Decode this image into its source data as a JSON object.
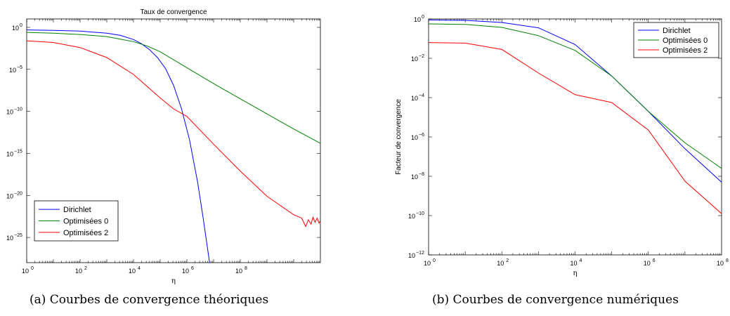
{
  "chart_data": [
    {
      "id": "a",
      "type": "line",
      "title": "Taux de convergence",
      "xlabel": "η",
      "ylabel": "",
      "x_scale": "log",
      "y_scale": "log",
      "xlim_exp": [
        0,
        11
      ],
      "ylim_exp": [
        -28,
        1
      ],
      "xtick_exp": [
        0,
        2,
        4,
        6,
        8
      ],
      "ytick_exp": [
        0,
        -5,
        -10,
        -15,
        -20,
        -25
      ],
      "legend_placement": "bottom-left",
      "series": [
        {
          "name": "Dirichlet",
          "color": "#0000ff",
          "x_exp": [
            0,
            1,
            2,
            3,
            3.5,
            4,
            4.3,
            4.6,
            4.9,
            5.2,
            5.5,
            5.8,
            6.1,
            6.4,
            6.6,
            6.75,
            6.85
          ],
          "y_exp": [
            -0.3,
            -0.35,
            -0.45,
            -0.7,
            -0.95,
            -1.45,
            -1.95,
            -2.65,
            -3.6,
            -4.9,
            -6.9,
            -9.7,
            -13.4,
            -18.4,
            -22.5,
            -25.8,
            -28
          ]
        },
        {
          "name": "Optimisées 0",
          "color": "#008000",
          "x_exp": [
            0,
            1,
            2,
            3,
            3.5,
            4,
            4.5,
            5,
            6,
            7,
            8,
            9,
            10,
            11
          ],
          "y_exp": [
            -0.6,
            -0.7,
            -0.85,
            -1.1,
            -1.4,
            -1.7,
            -2.2,
            -2.9,
            -4.8,
            -6.7,
            -8.5,
            -10.3,
            -12.1,
            -13.8
          ]
        },
        {
          "name": "Optimisées 2",
          "color": "#ff0000",
          "x_exp": [
            0,
            1,
            2,
            3,
            4,
            4.5,
            5,
            5.5,
            6,
            7,
            8,
            9,
            10,
            10.3,
            10.45,
            10.55,
            10.65,
            10.72,
            10.8,
            10.88,
            10.95,
            11
          ],
          "y_exp": [
            -1.6,
            -1.8,
            -2.4,
            -3.6,
            -5.6,
            -7.0,
            -8.4,
            -9.7,
            -10.6,
            -13.9,
            -17.1,
            -20.1,
            -22.3,
            -22.7,
            -23.7,
            -22.9,
            -23.4,
            -22.6,
            -23.2,
            -22.7,
            -23.3,
            -23.0
          ]
        }
      ]
    },
    {
      "id": "b",
      "type": "line",
      "title": "",
      "xlabel": "η",
      "ylabel": "Facteur de convergence",
      "x_scale": "log",
      "y_scale": "log",
      "xlim_exp": [
        0,
        8
      ],
      "ylim_exp": [
        -12,
        0
      ],
      "xtick_exp": [
        0,
        2,
        4,
        6,
        8
      ],
      "ytick_exp": [
        0,
        -2,
        -4,
        -6,
        -8,
        -10,
        -12
      ],
      "legend_placement": "top-right",
      "series": [
        {
          "name": "Dirichlet",
          "color": "#0000ff",
          "x_exp": [
            0,
            1,
            2,
            3,
            4,
            5,
            6,
            7,
            8
          ],
          "y_exp": [
            -0.05,
            -0.07,
            -0.18,
            -0.45,
            -1.3,
            -2.9,
            -4.7,
            -6.6,
            -8.3
          ]
        },
        {
          "name": "Optimisées 0",
          "color": "#008000",
          "x_exp": [
            0,
            1,
            2,
            3,
            4,
            5,
            6,
            7,
            8
          ],
          "y_exp": [
            -0.25,
            -0.28,
            -0.43,
            -0.85,
            -1.6,
            -2.9,
            -4.7,
            -6.3,
            -7.6
          ]
        },
        {
          "name": "Optimisées 2",
          "color": "#ff0000",
          "x_exp": [
            0,
            1,
            2,
            3,
            4,
            5,
            6,
            7,
            8
          ],
          "y_exp": [
            -1.2,
            -1.23,
            -1.55,
            -2.75,
            -3.85,
            -4.25,
            -5.65,
            -8.25,
            -9.9
          ]
        }
      ]
    }
  ],
  "captions": {
    "a": "(a)  Courbes de convergence théoriques",
    "b": "(b)  Courbes de convergence numériques"
  }
}
